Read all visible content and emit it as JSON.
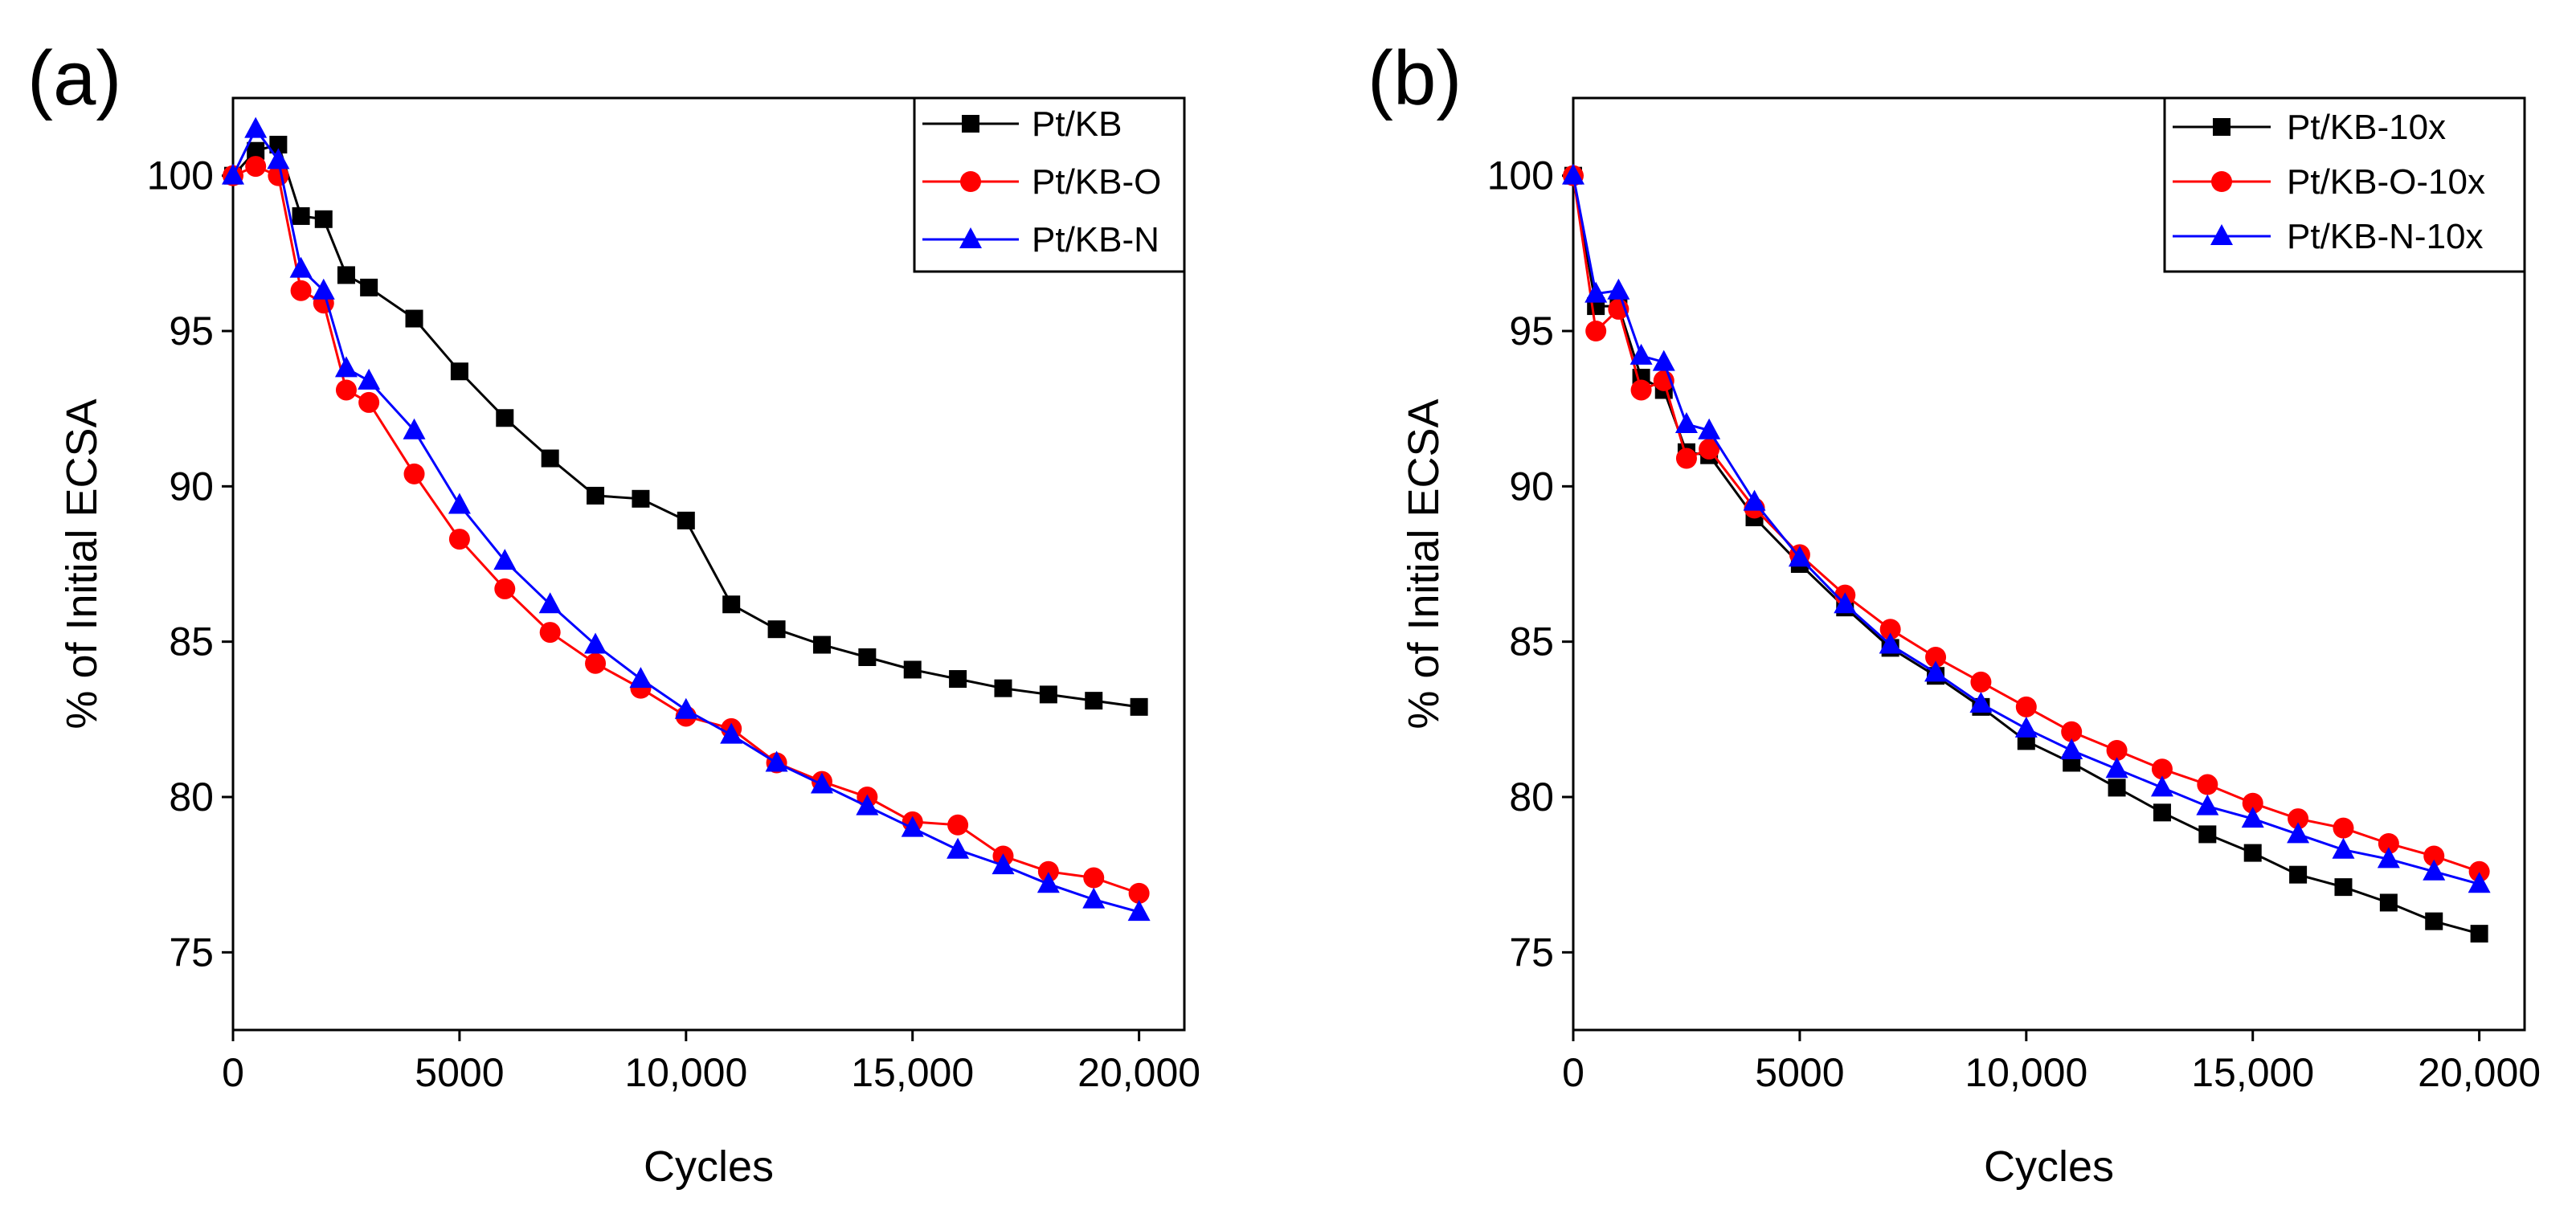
{
  "figure": {
    "colors": {
      "black": "#000000",
      "red": "#ff0000",
      "blue": "#0000ff"
    }
  },
  "chart_data": [
    {
      "type": "line",
      "panel_label": "(a)",
      "xlabel": "Cycles",
      "ylabel": "% of Initial ECSA",
      "xlim": [
        0,
        21000
      ],
      "ylim": [
        72.5,
        102.5
      ],
      "xticks": [
        0,
        5000,
        10000,
        15000,
        20000
      ],
      "xtick_labels": [
        "0",
        "5000",
        "10,000",
        "15,000",
        "20,000"
      ],
      "yticks": [
        75,
        80,
        85,
        90,
        95,
        100
      ],
      "ytick_labels": [
        "75",
        "80",
        "85",
        "90",
        "95",
        "100"
      ],
      "legend_position": "top-right",
      "x": [
        0,
        500,
        1000,
        1500,
        2000,
        2500,
        3000,
        4000,
        5000,
        6000,
        7000,
        8000,
        9000,
        10000,
        11000,
        12000,
        13000,
        14000,
        15000,
        16000,
        17000,
        18000,
        19000,
        20000
      ],
      "series": [
        {
          "name": "Pt/KB",
          "color": "#000000",
          "marker": "square",
          "values": [
            100,
            100.8,
            101,
            98.7,
            98.6,
            96.8,
            96.4,
            95.4,
            93.7,
            92.2,
            90.9,
            89.7,
            89.6,
            88.9,
            86.2,
            85.4,
            84.9,
            84.5,
            84.1,
            83.8,
            83.5,
            83.3,
            83.1,
            82.9
          ]
        },
        {
          "name": "Pt/KB-O",
          "color": "#ff0000",
          "marker": "circle",
          "values": [
            100,
            100.3,
            100,
            96.3,
            95.9,
            93.1,
            92.7,
            90.4,
            88.3,
            86.7,
            85.3,
            84.3,
            83.5,
            82.6,
            82.2,
            81.1,
            80.5,
            80,
            79.2,
            79.1,
            78.1,
            77.6,
            77.4,
            76.9
          ]
        },
        {
          "name": "Pt/KB-N",
          "color": "#0000ff",
          "marker": "triangle",
          "values": [
            100,
            101.5,
            100.5,
            97,
            96.3,
            93.8,
            93.4,
            91.8,
            89.4,
            87.6,
            86.2,
            84.9,
            83.8,
            82.8,
            82,
            81.1,
            80.4,
            79.7,
            79,
            78.3,
            77.8,
            77.2,
            76.7,
            76.3
          ]
        }
      ]
    },
    {
      "type": "line",
      "panel_label": "(b)",
      "xlabel": "Cycles",
      "ylabel": "% of Initial ECSA",
      "xlim": [
        0,
        21000
      ],
      "ylim": [
        72.5,
        102.5
      ],
      "xticks": [
        0,
        5000,
        10000,
        15000,
        20000
      ],
      "xtick_labels": [
        "0",
        "5000",
        "10,000",
        "15,000",
        "20,000"
      ],
      "yticks": [
        75,
        80,
        85,
        90,
        95,
        100
      ],
      "ytick_labels": [
        "75",
        "80",
        "85",
        "90",
        "95",
        "100"
      ],
      "legend_position": "top-right",
      "x": [
        0,
        500,
        1000,
        1500,
        2000,
        2500,
        3000,
        4000,
        5000,
        6000,
        7000,
        8000,
        9000,
        10000,
        11000,
        12000,
        13000,
        14000,
        15000,
        16000,
        17000,
        18000,
        19000,
        20000
      ],
      "series": [
        {
          "name": "Pt/KB-10x",
          "color": "#000000",
          "marker": "square",
          "values": [
            100,
            95.8,
            95.8,
            93.5,
            93.1,
            91.1,
            91,
            89,
            87.5,
            86.1,
            84.8,
            83.9,
            82.9,
            81.8,
            81.1,
            80.3,
            79.5,
            78.8,
            78.2,
            77.5,
            77.1,
            76.6,
            76,
            75.6
          ]
        },
        {
          "name": "Pt/KB-O-10x",
          "color": "#ff0000",
          "marker": "circle",
          "values": [
            100,
            95,
            95.7,
            93.1,
            93.4,
            90.9,
            91.2,
            89.3,
            87.8,
            86.5,
            85.4,
            84.5,
            83.7,
            82.9,
            82.1,
            81.5,
            80.9,
            80.4,
            79.8,
            79.3,
            79,
            78.5,
            78.1,
            77.6
          ]
        },
        {
          "name": "Pt/KB-N-10x",
          "color": "#0000ff",
          "marker": "triangle",
          "values": [
            100,
            96.2,
            96.3,
            94.2,
            94,
            92,
            91.8,
            89.5,
            87.7,
            86.2,
            84.9,
            84,
            83,
            82.2,
            81.5,
            80.9,
            80.3,
            79.7,
            79.3,
            78.8,
            78.3,
            78,
            77.6,
            77.2
          ]
        }
      ]
    }
  ]
}
